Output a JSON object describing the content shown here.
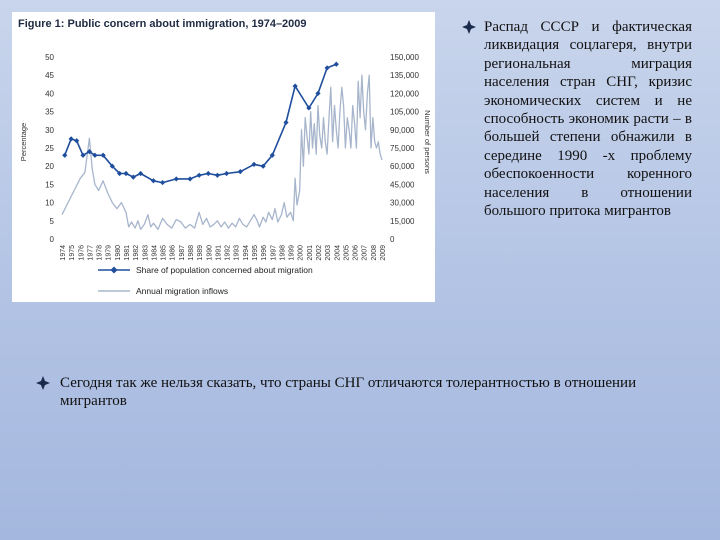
{
  "chart_data": {
    "type": "line",
    "title": "Figure 1: Public concern about immigration, 1974–2009",
    "ylabel": "Percentage",
    "y2label": "Number of persons",
    "ylim": [
      0,
      50
    ],
    "y2lim": [
      0,
      150000
    ],
    "y_ticks": [
      "0",
      "5",
      "10",
      "15",
      "20",
      "25",
      "30",
      "35",
      "40",
      "45",
      "50"
    ],
    "y2_ticks": [
      "0",
      "15,000",
      "30,000",
      "45,000",
      "60,000",
      "75,000",
      "90,000",
      "105,000",
      "120,000",
      "135,000",
      "150,000"
    ],
    "x_ticks": [
      "1974",
      "1975",
      "1976",
      "1977",
      "1978",
      "1979",
      "1980",
      "1981",
      "1982",
      "1983",
      "1984",
      "1985",
      "1986",
      "1987",
      "1988",
      "1989",
      "1990",
      "1991",
      "1992",
      "1993",
      "1994",
      "1995",
      "1996",
      "1997",
      "1998",
      "1999",
      "2000",
      "2001",
      "2002",
      "2003",
      "2004",
      "2005",
      "2006",
      "2007",
      "2008",
      "2009"
    ],
    "legend_position": "bottom",
    "series": [
      {
        "name": "Share of population concerned about migration",
        "axis": "left",
        "color": "#1f4e9c",
        "marker": "diamond",
        "points": [
          [
            1974.3,
            23
          ],
          [
            1975.0,
            27.5
          ],
          [
            1975.6,
            27
          ],
          [
            1976.3,
            23
          ],
          [
            1977.0,
            24
          ],
          [
            1977.6,
            23
          ],
          [
            1978.5,
            23
          ],
          [
            1979.5,
            20
          ],
          [
            1980.3,
            18
          ],
          [
            1981.0,
            18
          ],
          [
            1981.8,
            17
          ],
          [
            1982.6,
            18
          ],
          [
            1984.0,
            16
          ],
          [
            1985.0,
            15.5
          ],
          [
            1986.5,
            16.5
          ],
          [
            1988.0,
            16.5
          ],
          [
            1989.0,
            17.5
          ],
          [
            1990.0,
            18
          ],
          [
            1991.0,
            17.5
          ],
          [
            1992.0,
            18
          ],
          [
            1993.5,
            18.5
          ],
          [
            1995.0,
            20.5
          ],
          [
            1996.0,
            20
          ],
          [
            1997.0,
            23
          ],
          [
            1998.5,
            32
          ],
          [
            1999.5,
            42
          ],
          [
            2001.0,
            36
          ],
          [
            2002.0,
            40
          ],
          [
            2003.0,
            47
          ],
          [
            2004.0,
            48
          ]
        ]
      },
      {
        "name": "Annual migration inflows",
        "axis": "right",
        "color": "#a7b5cc",
        "marker": "none",
        "points": [
          [
            1974.0,
            20000
          ],
          [
            1975.0,
            35000
          ],
          [
            1976.0,
            50000
          ],
          [
            1976.5,
            55000
          ],
          [
            1977.0,
            83000
          ],
          [
            1977.3,
            58000
          ],
          [
            1977.6,
            45000
          ],
          [
            1978.0,
            40000
          ],
          [
            1978.5,
            48000
          ],
          [
            1979.0,
            38000
          ],
          [
            1979.5,
            30000
          ],
          [
            1980.0,
            25000
          ],
          [
            1980.5,
            30000
          ],
          [
            1981.0,
            22000
          ],
          [
            1981.3,
            10000
          ],
          [
            1981.6,
            14000
          ],
          [
            1982.0,
            9000
          ],
          [
            1982.3,
            15000
          ],
          [
            1982.6,
            8000
          ],
          [
            1983.0,
            12000
          ],
          [
            1983.4,
            20000
          ],
          [
            1983.7,
            10000
          ],
          [
            1984.0,
            13000
          ],
          [
            1984.5,
            8000
          ],
          [
            1985.0,
            17000
          ],
          [
            1985.5,
            12000
          ],
          [
            1986.0,
            9000
          ],
          [
            1986.5,
            16000
          ],
          [
            1987.0,
            14000
          ],
          [
            1987.5,
            9000
          ],
          [
            1988.0,
            12000
          ],
          [
            1988.5,
            9000
          ],
          [
            1989.0,
            22000
          ],
          [
            1989.4,
            12000
          ],
          [
            1989.8,
            17000
          ],
          [
            1990.2,
            10000
          ],
          [
            1990.6,
            12000
          ],
          [
            1991.0,
            15000
          ],
          [
            1991.4,
            10000
          ],
          [
            1991.8,
            14000
          ],
          [
            1992.2,
            9000
          ],
          [
            1992.6,
            13000
          ],
          [
            1993.0,
            10000
          ],
          [
            1993.4,
            17000
          ],
          [
            1993.8,
            12000
          ],
          [
            1994.2,
            10000
          ],
          [
            1994.6,
            15000
          ],
          [
            1995.0,
            20000
          ],
          [
            1995.3,
            16000
          ],
          [
            1995.6,
            10000
          ],
          [
            1996.0,
            18000
          ],
          [
            1996.3,
            14000
          ],
          [
            1996.6,
            22000
          ],
          [
            1997.0,
            16000
          ],
          [
            1997.3,
            25000
          ],
          [
            1997.6,
            14000
          ],
          [
            1998.0,
            20000
          ],
          [
            1998.3,
            30000
          ],
          [
            1998.6,
            18000
          ],
          [
            1999.0,
            22000
          ],
          [
            1999.3,
            15000
          ],
          [
            1999.5,
            50000
          ],
          [
            1999.7,
            28000
          ],
          [
            2000.0,
            40000
          ],
          [
            2000.2,
            90000
          ],
          [
            2000.4,
            60000
          ],
          [
            2000.6,
            100000
          ],
          [
            2000.8,
            85000
          ],
          [
            2001.0,
            70000
          ],
          [
            2001.2,
            105000
          ],
          [
            2001.4,
            75000
          ],
          [
            2001.6,
            95000
          ],
          [
            2001.8,
            70000
          ],
          [
            2002.0,
            110000
          ],
          [
            2002.2,
            85000
          ],
          [
            2002.4,
            75000
          ],
          [
            2002.6,
            100000
          ],
          [
            2002.8,
            80000
          ],
          [
            2003.0,
            70000
          ],
          [
            2003.2,
            100000
          ],
          [
            2003.4,
            125000
          ],
          [
            2003.6,
            80000
          ],
          [
            2003.8,
            110000
          ],
          [
            2004.0,
            90000
          ],
          [
            2004.2,
            75000
          ],
          [
            2004.4,
            105000
          ],
          [
            2004.6,
            125000
          ],
          [
            2004.8,
            110000
          ],
          [
            2005.0,
            75000
          ],
          [
            2005.2,
            100000
          ],
          [
            2005.4,
            90000
          ],
          [
            2005.6,
            75000
          ],
          [
            2005.8,
            110000
          ],
          [
            2006.0,
            95000
          ],
          [
            2006.2,
            75000
          ],
          [
            2006.4,
            130000
          ],
          [
            2006.6,
            100000
          ],
          [
            2006.8,
            135000
          ],
          [
            2007.0,
            105000
          ],
          [
            2007.2,
            90000
          ],
          [
            2007.4,
            120000
          ],
          [
            2007.6,
            135000
          ],
          [
            2007.8,
            75000
          ],
          [
            2008.0,
            100000
          ],
          [
            2008.2,
            80000
          ],
          [
            2008.4,
            75000
          ],
          [
            2008.6,
            80000
          ],
          [
            2008.8,
            70000
          ],
          [
            2009.0,
            65000
          ]
        ]
      }
    ]
  },
  "bullets": [
    "Распад СССР и фактическая ликвидация соцлагеря, внутри региональная миграция населения стран СНГ, кризис экономических систем и не способность экономик расти – в большей степени обнажили в середине 1990 -х проблему обеспокоенности коренного населения в отношении большого притока мигрантов",
    "Сегодня так же нельзя сказать, что страны СНГ отличаются толерантностью в отношении мигрантов"
  ]
}
